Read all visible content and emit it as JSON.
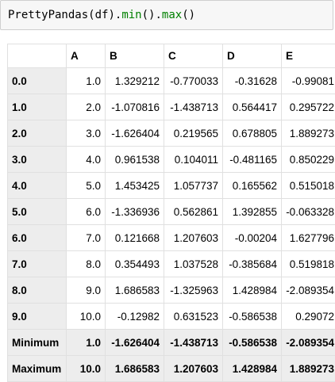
{
  "code_cell": {
    "object": "PrettyPandas",
    "open": "(",
    "arg": "df",
    "close_dot": ").",
    "method1": "min",
    "call1": "().",
    "method2": "max",
    "call2": "()"
  },
  "table": {
    "columns": [
      "A",
      "B",
      "C",
      "D",
      "E"
    ],
    "rows": [
      {
        "index": "0.0",
        "values": [
          "1.0",
          "1.329212",
          "-0.770033",
          "-0.31628",
          "-0.99081"
        ]
      },
      {
        "index": "1.0",
        "values": [
          "2.0",
          "-1.070816",
          "-1.438713",
          "0.564417",
          "0.295722"
        ]
      },
      {
        "index": "2.0",
        "values": [
          "3.0",
          "-1.626404",
          "0.219565",
          "0.678805",
          "1.889273"
        ]
      },
      {
        "index": "3.0",
        "values": [
          "4.0",
          "0.961538",
          "0.104011",
          "-0.481165",
          "0.850229"
        ]
      },
      {
        "index": "4.0",
        "values": [
          "5.0",
          "1.453425",
          "1.057737",
          "0.165562",
          "0.515018"
        ]
      },
      {
        "index": "5.0",
        "values": [
          "6.0",
          "-1.336936",
          "0.562861",
          "1.392855",
          "-0.063328"
        ]
      },
      {
        "index": "6.0",
        "values": [
          "7.0",
          "0.121668",
          "1.207603",
          "-0.00204",
          "1.627796"
        ]
      },
      {
        "index": "7.0",
        "values": [
          "8.0",
          "0.354493",
          "1.037528",
          "-0.385684",
          "0.519818"
        ]
      },
      {
        "index": "8.0",
        "values": [
          "9.0",
          "1.686583",
          "-1.325963",
          "1.428984",
          "-2.089354"
        ]
      },
      {
        "index": "9.0",
        "values": [
          "10.0",
          "-0.12982",
          "0.631523",
          "-0.586538",
          "0.29072"
        ]
      }
    ],
    "summary_rows": [
      {
        "index": "Minimum",
        "values": [
          "1.0",
          "-1.626404",
          "-1.438713",
          "-0.586538",
          "-2.089354"
        ]
      },
      {
        "index": "Maximum",
        "values": [
          "10.0",
          "1.686583",
          "1.207603",
          "1.428984",
          "1.889273"
        ]
      }
    ]
  },
  "colors": {
    "code_background": "#f7f7f7",
    "code_border": "#cfcfcf",
    "method_green": "#008000",
    "index_background": "#ededed",
    "summary_background": "#ededed",
    "cell_border": "#e0e0e0"
  }
}
